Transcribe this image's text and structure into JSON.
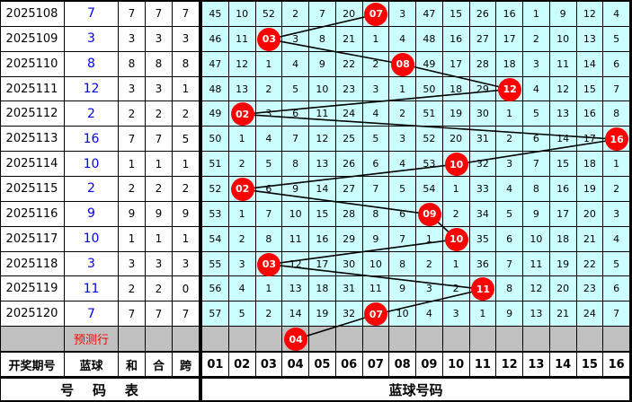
{
  "chart_data": {
    "type": "table",
    "columns": [
      "开奖期号",
      "蓝球",
      "和",
      "合",
      "跨"
    ],
    "number_columns": [
      "01",
      "02",
      "03",
      "04",
      "05",
      "06",
      "07",
      "08",
      "09",
      "10",
      "11",
      "12",
      "13",
      "14",
      "15",
      "16"
    ],
    "footer_left": "号    码    表",
    "footer_right": "蓝球号码",
    "prediction_label": "预测行",
    "prediction_ball": "04",
    "ball_color": "#ff0000",
    "grid_color": "#ccffff",
    "rows": [
      {
        "period": "2025108",
        "blue": "7",
        "he": "7",
        "he2": "7",
        "kua": "7",
        "ball": "07",
        "cells": [
          45,
          10,
          52,
          2,
          7,
          20,
          null,
          3,
          47,
          15,
          26,
          16,
          1,
          9,
          12,
          4
        ]
      },
      {
        "period": "2025109",
        "blue": "3",
        "he": "3",
        "he2": "3",
        "kua": "3",
        "ball": "03",
        "cells": [
          46,
          11,
          null,
          3,
          8,
          21,
          1,
          4,
          48,
          16,
          27,
          17,
          2,
          10,
          13,
          5
        ]
      },
      {
        "period": "2025110",
        "blue": "8",
        "he": "8",
        "he2": "8",
        "kua": "8",
        "ball": "08",
        "cells": [
          47,
          12,
          1,
          4,
          9,
          22,
          2,
          null,
          49,
          17,
          28,
          18,
          3,
          11,
          14,
          6
        ]
      },
      {
        "period": "2025111",
        "blue": "12",
        "he": "3",
        "he2": "3",
        "kua": "1",
        "ball": "12",
        "cells": [
          48,
          13,
          2,
          5,
          10,
          23,
          3,
          1,
          50,
          18,
          29,
          null,
          4,
          12,
          15,
          7
        ]
      },
      {
        "period": "2025112",
        "blue": "2",
        "he": "2",
        "he2": "2",
        "kua": "2",
        "ball": "02",
        "cells": [
          49,
          null,
          3,
          6,
          11,
          24,
          4,
          2,
          51,
          19,
          30,
          1,
          5,
          13,
          16,
          8
        ]
      },
      {
        "period": "2025113",
        "blue": "16",
        "he": "7",
        "he2": "7",
        "kua": "5",
        "ball": "16",
        "cells": [
          50,
          1,
          4,
          7,
          12,
          25,
          5,
          3,
          52,
          20,
          31,
          2,
          6,
          14,
          17,
          null
        ]
      },
      {
        "period": "2025114",
        "blue": "10",
        "he": "1",
        "he2": "1",
        "kua": "1",
        "ball": "10",
        "cells": [
          51,
          2,
          5,
          8,
          13,
          26,
          6,
          4,
          53,
          null,
          32,
          3,
          7,
          15,
          18,
          1
        ]
      },
      {
        "period": "2025115",
        "blue": "2",
        "he": "2",
        "he2": "2",
        "kua": "2",
        "ball": "02",
        "cells": [
          52,
          null,
          6,
          9,
          14,
          27,
          7,
          5,
          54,
          1,
          33,
          4,
          8,
          16,
          19,
          2
        ]
      },
      {
        "period": "2025116",
        "blue": "9",
        "he": "9",
        "he2": "9",
        "kua": "9",
        "ball": "09",
        "cells": [
          53,
          1,
          7,
          10,
          15,
          28,
          8,
          6,
          null,
          2,
          34,
          5,
          9,
          17,
          20,
          3
        ]
      },
      {
        "period": "2025117",
        "blue": "10",
        "he": "1",
        "he2": "1",
        "kua": "1",
        "ball": "10",
        "cells": [
          54,
          2,
          8,
          11,
          16,
          29,
          9,
          7,
          1,
          null,
          35,
          6,
          10,
          18,
          21,
          4
        ]
      },
      {
        "period": "2025118",
        "blue": "3",
        "he": "3",
        "he2": "3",
        "kua": "3",
        "ball": "03",
        "cells": [
          55,
          3,
          null,
          12,
          17,
          30,
          10,
          8,
          2,
          1,
          36,
          7,
          11,
          19,
          22,
          5
        ]
      },
      {
        "period": "2025119",
        "blue": "11",
        "he": "2",
        "he2": "2",
        "kua": "0",
        "ball": "11",
        "cells": [
          56,
          4,
          1,
          13,
          18,
          31,
          11,
          9,
          3,
          2,
          null,
          8,
          12,
          20,
          23,
          6
        ]
      },
      {
        "period": "2025120",
        "blue": "7",
        "he": "7",
        "he2": "7",
        "kua": "7",
        "ball": "07",
        "cells": [
          57,
          5,
          2,
          14,
          19,
          32,
          null,
          10,
          4,
          3,
          1,
          9,
          13,
          21,
          24,
          7
        ]
      }
    ]
  }
}
